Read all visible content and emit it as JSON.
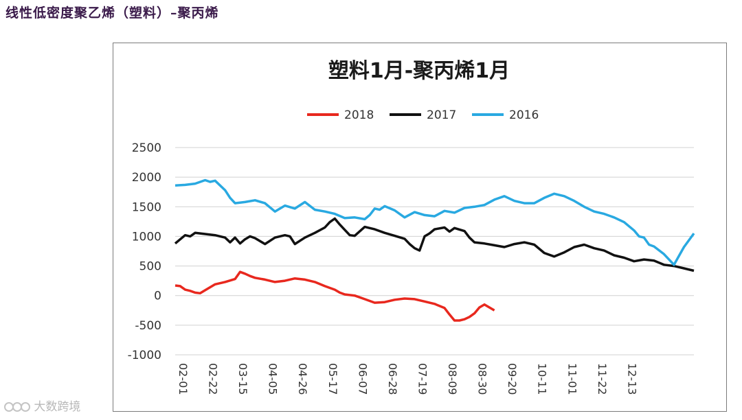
{
  "page": {
    "title": "线性低密度聚乙烯（塑料）–聚丙烯",
    "watermark": "大数跨境"
  },
  "chart_data": {
    "type": "line",
    "title": "塑料1月-聚丙烯1月",
    "xlabel": "",
    "ylabel": "",
    "ylim": [
      -1000,
      2500
    ],
    "yticks": [
      -1000,
      -500,
      0,
      500,
      1000,
      1500,
      2000,
      2500
    ],
    "ytick_labels": [
      "-1000",
      "-500",
      "0",
      "500",
      "1000",
      "1500",
      "2000",
      "2500"
    ],
    "xlim": [
      0,
      52
    ],
    "xticks": [
      0,
      3,
      6,
      9,
      12,
      15,
      18,
      21,
      24,
      27,
      30,
      33,
      36,
      39,
      42,
      45
    ],
    "xtick_labels": [
      "02-01",
      "02-22",
      "03-15",
      "04-05",
      "04-26",
      "05-17",
      "06-07",
      "06-28",
      "07-19",
      "08-09",
      "08-30",
      "09-20",
      "10-11",
      "11-01",
      "11-22",
      "12-13"
    ],
    "grid": true,
    "legend_position": "top-center",
    "series": [
      {
        "name": "2018",
        "color": "#e8281e",
        "x": [
          0,
          0.5,
          1,
          1.5,
          2,
          2.5,
          3,
          4,
          5,
          6,
          6.5,
          7,
          7.5,
          8,
          9,
          10,
          11,
          12,
          13,
          14,
          15,
          16,
          16.5,
          17,
          18,
          19,
          20,
          21,
          22,
          23,
          24,
          25,
          26,
          27,
          27.5,
          28,
          28.5,
          29,
          29.5,
          30,
          30.5,
          31,
          32
        ],
        "values": [
          170,
          160,
          100,
          80,
          50,
          40,
          90,
          190,
          230,
          280,
          400,
          370,
          330,
          300,
          270,
          230,
          250,
          290,
          270,
          230,
          160,
          100,
          50,
          20,
          0,
          -60,
          -120,
          -110,
          -70,
          -50,
          -60,
          -100,
          -140,
          -210,
          -320,
          -420,
          -420,
          -400,
          -360,
          -300,
          -200,
          -150,
          -250
        ]
      },
      {
        "name": "2017",
        "color": "#111111",
        "x": [
          0,
          0.5,
          1,
          1.5,
          2,
          3,
          4,
          5,
          5.5,
          6,
          6.5,
          7,
          7.5,
          8,
          9,
          10,
          11,
          11.5,
          12,
          13,
          14,
          15,
          15.5,
          16,
          16.5,
          17,
          17.5,
          18,
          19,
          20,
          21,
          22,
          23,
          23.5,
          24,
          24.5,
          25,
          25.5,
          26,
          27,
          27.5,
          28,
          29,
          29.5,
          30,
          31,
          32,
          33,
          34,
          35,
          36,
          37,
          38,
          39,
          40,
          41,
          42,
          43,
          44,
          45,
          46,
          47,
          48,
          49,
          50,
          51,
          52
        ],
        "values": [
          880,
          950,
          1020,
          1000,
          1060,
          1040,
          1020,
          980,
          900,
          980,
          880,
          950,
          1000,
          970,
          870,
          980,
          1020,
          1000,
          870,
          980,
          1060,
          1150,
          1240,
          1300,
          1200,
          1110,
          1020,
          1010,
          1160,
          1120,
          1060,
          1010,
          960,
          870,
          800,
          760,
          1000,
          1050,
          1120,
          1150,
          1080,
          1140,
          1090,
          980,
          900,
          880,
          850,
          820,
          870,
          900,
          860,
          720,
          660,
          730,
          820,
          860,
          800,
          760,
          680,
          640,
          580,
          610,
          590,
          520,
          500,
          460,
          420
        ]
      },
      {
        "name": "2016",
        "color": "#29a9e1",
        "x": [
          0,
          1,
          2,
          3,
          3.5,
          4,
          5,
          5.5,
          6,
          7,
          8,
          9,
          10,
          11,
          12,
          13,
          14,
          15,
          16,
          17,
          18,
          19,
          19.5,
          20,
          20.5,
          21,
          22,
          23,
          24,
          25,
          26,
          27,
          28,
          29,
          30,
          31,
          32,
          33,
          34,
          35,
          36,
          37,
          38,
          39,
          40,
          41,
          42,
          43,
          44,
          45,
          46,
          46.5,
          47,
          47.5,
          48,
          49,
          50,
          51,
          52
        ],
        "values": [
          1860,
          1870,
          1890,
          1950,
          1920,
          1940,
          1780,
          1650,
          1560,
          1580,
          1610,
          1560,
          1420,
          1520,
          1470,
          1580,
          1450,
          1420,
          1380,
          1310,
          1320,
          1290,
          1360,
          1470,
          1450,
          1510,
          1440,
          1320,
          1410,
          1360,
          1340,
          1430,
          1400,
          1480,
          1500,
          1530,
          1620,
          1680,
          1600,
          1560,
          1560,
          1650,
          1720,
          1680,
          1600,
          1500,
          1420,
          1380,
          1320,
          1240,
          1100,
          1000,
          980,
          860,
          830,
          700,
          520,
          820,
          1050
        ]
      }
    ]
  }
}
